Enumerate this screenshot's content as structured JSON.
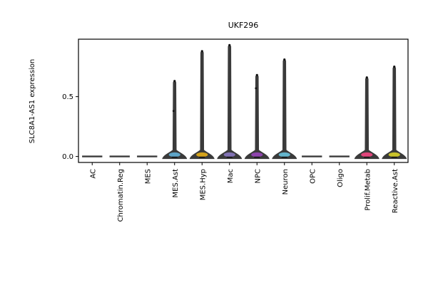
{
  "chart_data": {
    "type": "violin",
    "title": "UKF296",
    "xlabel": "",
    "ylabel": "SLC8A1-AS1 expression",
    "ylim": [
      -0.05,
      0.98
    ],
    "yticks": [
      0.0,
      0.5
    ],
    "ytick_labels": [
      "0.0",
      "0.5"
    ],
    "grid": false,
    "categories": [
      "AC",
      "Chromatin.Reg",
      "MES",
      "MES.Ast",
      "MES.Hyp",
      "Mac",
      "NPC",
      "Neuron",
      "OPC",
      "Oligo",
      "Prolif.Metab",
      "Reactive.Ast"
    ],
    "max_values": [
      0.0,
      0.0,
      0.0,
      0.63,
      0.88,
      0.93,
      0.68,
      0.81,
      0.0,
      0.0,
      0.66,
      0.75
    ],
    "outliers": [
      [],
      [],
      [],
      [
        0.38
      ],
      [],
      [],
      [
        0.57
      ],
      [],
      [],
      [],
      [],
      []
    ],
    "colors": [
      "#4c72b0",
      "#dd8452",
      "#55a868",
      "#5ea5c8",
      "#d4a21a",
      "#8172b3",
      "#8e44ad",
      "#64b5cd",
      "#937860",
      "#da8bc3",
      "#e0457b",
      "#c9c22a"
    ],
    "body_color": "#3a3a3a"
  }
}
